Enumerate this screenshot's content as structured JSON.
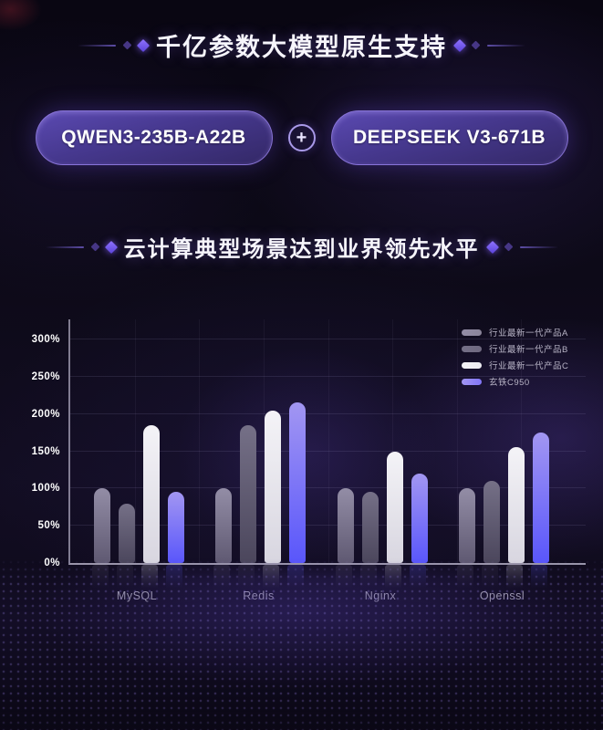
{
  "section1": {
    "title": "千亿参数大模型原生支持",
    "pill_left": "QWEN3-235B-A22B",
    "plus": "+",
    "pill_right": "DEEPSEEK V3-671B"
  },
  "section2": {
    "title": "云计算典型场景达到业界领先水平"
  },
  "colors": {
    "accent_purple": "#7b5ff5",
    "pill_fill": "#46388e",
    "pill_border": "#927de2",
    "title_text": "#f6f5fb",
    "axis_line": "#d7d2e8",
    "legend_text": "#b7b3c5"
  },
  "chart_data": {
    "type": "bar",
    "title": "",
    "xlabel": "",
    "ylabel": "",
    "unit": "%",
    "categories": [
      "MySQL",
      "Redis",
      "Nginx",
      "Openssl"
    ],
    "series": [
      {
        "name": "行业最新一代产品A",
        "values": [
          100,
          100,
          100,
          100
        ],
        "color": "#8a8499",
        "color_top": "#938da6",
        "color_bottom": "#5f5972"
      },
      {
        "name": "行业最新一代产品B",
        "values": [
          80,
          185,
          95,
          110
        ],
        "color": "#6f6980",
        "color_top": "#757087",
        "color_bottom": "#4b465c"
      },
      {
        "name": "行业最新一代产品C",
        "values": [
          185,
          205,
          150,
          155
        ],
        "color": "#ecebf1",
        "color_top": "#f4f3f7",
        "color_bottom": "#d8d6e0"
      },
      {
        "name": "玄铁C950",
        "values": [
          95,
          215,
          120,
          175
        ],
        "color": "#8175f5",
        "color_top": "#a296f2",
        "color_bottom": "#5956fb"
      }
    ],
    "yticks": [
      {
        "label": "0%",
        "value": 0
      },
      {
        "label": "50%",
        "value": 50
      },
      {
        "label": "100%",
        "value": 100
      },
      {
        "label": "150%",
        "value": 150
      },
      {
        "label": "200%",
        "value": 200
      },
      {
        "label": "250%",
        "value": 250
      },
      {
        "label": "300%",
        "value": 300
      }
    ],
    "ylim": [
      0,
      300
    ],
    "grid": true,
    "legend_position": "top-right"
  }
}
